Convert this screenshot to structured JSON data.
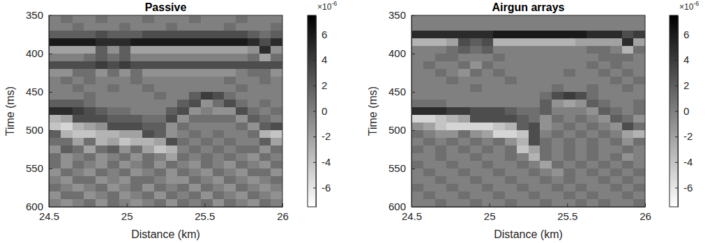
{
  "chart_data": [
    {
      "type": "heatmap",
      "title": "Passive",
      "xlabel": "Distance (km)",
      "ylabel": "Time (ms)",
      "xlim": [
        24.5,
        26
      ],
      "ylim": [
        350,
        600
      ],
      "xticks": [
        24.5,
        25,
        25.5,
        26
      ],
      "yticks": [
        350,
        400,
        450,
        500,
        550,
        600
      ],
      "x": [
        24.5375,
        24.6125,
        24.6875,
        24.7625,
        24.8375,
        24.9125,
        24.9875,
        25.0625,
        25.1375,
        25.2125,
        25.2875,
        25.3625,
        25.4375,
        25.5125,
        25.5875,
        25.6625,
        25.7375,
        25.8125,
        25.8875,
        25.9625
      ],
      "y": [
        355,
        365,
        375,
        385,
        395,
        405,
        415,
        425,
        435,
        445,
        455,
        465,
        475,
        485,
        495,
        505,
        515,
        525,
        535,
        545,
        555,
        565,
        575,
        585,
        595
      ],
      "values": [
        [
          0,
          1,
          0,
          0,
          1,
          0,
          0,
          0,
          1,
          0,
          0,
          0,
          1,
          0,
          0,
          0,
          1,
          0,
          0,
          0
        ],
        [
          0,
          0,
          1,
          0,
          0,
          0,
          1,
          0,
          0,
          0,
          1,
          0,
          0,
          0,
          0,
          1,
          0,
          0,
          0,
          1
        ],
        [
          2,
          2,
          2,
          2,
          3,
          2,
          2,
          2,
          3,
          3,
          3,
          3,
          3,
          3,
          3,
          3,
          3,
          2,
          1,
          2
        ],
        [
          6,
          6,
          6,
          6,
          5,
          5,
          5,
          6,
          6,
          6,
          6,
          6,
          6,
          6,
          6,
          6,
          6,
          5,
          3,
          5
        ],
        [
          -2,
          -2,
          -2,
          -2,
          2,
          -1,
          2,
          -2,
          -2,
          -2,
          -2,
          -2,
          -2,
          -2,
          -2,
          -2,
          -2,
          -1,
          5,
          -1
        ],
        [
          0,
          0,
          0,
          1,
          2,
          1,
          2,
          0,
          0,
          0,
          0,
          0,
          0,
          0,
          0,
          0,
          0,
          1,
          -2,
          1
        ],
        [
          3,
          3,
          3,
          3,
          4,
          3,
          4,
          3,
          3,
          3,
          3,
          3,
          3,
          3,
          3,
          3,
          3,
          3,
          3,
          3
        ],
        [
          -1,
          -1,
          1,
          1,
          -1,
          1,
          -1,
          1,
          -1,
          -1,
          -1,
          -1,
          -1,
          -1,
          -1,
          -1,
          0,
          1,
          1,
          -1
        ],
        [
          0,
          1,
          0,
          1,
          0,
          0,
          0,
          1,
          0,
          0,
          0,
          0,
          0,
          0,
          0,
          1,
          0,
          0,
          1,
          0
        ],
        [
          0,
          0,
          1,
          0,
          0,
          1,
          0,
          0,
          1,
          0,
          0,
          0,
          0,
          0,
          0,
          0,
          1,
          0,
          0,
          0
        ],
        [
          0,
          0,
          0,
          1,
          0,
          0,
          0,
          0,
          0,
          1,
          0,
          0,
          2,
          4,
          3,
          1,
          0,
          0,
          0,
          0
        ],
        [
          2,
          2,
          2,
          1,
          0,
          0,
          0,
          0,
          0,
          0,
          0,
          2,
          3,
          -1,
          1,
          3,
          1,
          0,
          1,
          0
        ],
        [
          5,
          5,
          4,
          3,
          2,
          1,
          1,
          0,
          0,
          0,
          2,
          3,
          -1,
          0,
          -1,
          -1,
          3,
          1,
          0,
          1
        ],
        [
          -3,
          -2,
          3,
          3,
          3,
          2,
          2,
          2,
          1,
          1,
          3,
          -1,
          1,
          1,
          1,
          1,
          -1,
          2,
          1,
          0
        ],
        [
          -4,
          -5,
          -3,
          -2,
          -1,
          3,
          3,
          3,
          2,
          2,
          -1,
          1,
          0,
          0,
          0,
          0,
          1,
          -1,
          2,
          3
        ],
        [
          2,
          -3,
          -4,
          -4,
          -3,
          -3,
          -2,
          -2,
          3,
          2,
          -1,
          0,
          1,
          0,
          1,
          0,
          0,
          1,
          -3,
          -4
        ],
        [
          1,
          1,
          -2,
          1,
          -3,
          -2,
          -4,
          -3,
          -3,
          -2,
          3,
          1,
          0,
          1,
          0,
          1,
          0,
          0,
          2,
          -2
        ],
        [
          -1,
          2,
          1,
          -2,
          1,
          2,
          -1,
          1,
          -2,
          -4,
          -3,
          0,
          1,
          0,
          1,
          0,
          1,
          1,
          -1,
          1
        ],
        [
          1,
          -1,
          0,
          1,
          -1,
          0,
          1,
          -1,
          1,
          0,
          -2,
          1,
          0,
          1,
          0,
          1,
          0,
          -1,
          1,
          0
        ],
        [
          1,
          -1,
          1,
          0,
          -1,
          1,
          -1,
          0,
          1,
          -1,
          1,
          0,
          -1,
          1,
          0,
          -1,
          1,
          0,
          -1,
          1
        ],
        [
          -1,
          1,
          0,
          -1,
          1,
          0,
          1,
          -1,
          0,
          1,
          -1,
          1,
          0,
          -1,
          1,
          0,
          -1,
          1,
          1,
          -1
        ],
        [
          0,
          -1,
          1,
          1,
          -1,
          0,
          -1,
          1,
          1,
          0,
          -1,
          -1,
          1,
          0,
          -1,
          1,
          0,
          -1,
          0,
          1
        ],
        [
          1,
          0,
          -1,
          0,
          1,
          -1,
          0,
          1,
          -1,
          1,
          0,
          1,
          -1,
          1,
          0,
          -1,
          1,
          0,
          -1,
          0
        ],
        [
          -1,
          1,
          1,
          -1,
          0,
          1,
          -1,
          0,
          1,
          -1,
          1,
          0,
          1,
          -1,
          1,
          0,
          -1,
          1,
          0,
          -1
        ],
        [
          0,
          -1,
          0,
          1,
          -1,
          1,
          0,
          -1,
          0,
          1,
          -1,
          1,
          0,
          1,
          -1,
          1,
          0,
          -1,
          1,
          0
        ]
      ],
      "colorbar": {
        "range": [
          -7.5,
          7.5
        ],
        "ticks": [
          -6,
          -4,
          -2,
          0,
          2,
          4,
          6
        ],
        "scale_label": "×10",
        "scale_exponent": "-6"
      }
    },
    {
      "type": "heatmap",
      "title": "Airgun arrays",
      "xlabel": "Distance (km)",
      "ylabel": "Time (ms)",
      "xlim": [
        24.5,
        26
      ],
      "ylim": [
        350,
        600
      ],
      "xticks": [
        24.5,
        25,
        25.5,
        26
      ],
      "yticks": [
        350,
        400,
        450,
        500,
        550,
        600
      ],
      "x": [
        24.5375,
        24.6125,
        24.6875,
        24.7625,
        24.8375,
        24.9125,
        24.9875,
        25.0625,
        25.1375,
        25.2125,
        25.2875,
        25.3625,
        25.4375,
        25.5125,
        25.5875,
        25.6625,
        25.7375,
        25.8125,
        25.8875,
        25.9625
      ],
      "y": [
        355,
        365,
        375,
        385,
        395,
        405,
        415,
        425,
        435,
        445,
        455,
        465,
        475,
        485,
        495,
        505,
        515,
        525,
        535,
        545,
        555,
        565,
        575,
        585,
        595
      ],
      "values": [
        [
          0,
          0,
          0,
          0,
          0,
          0,
          0,
          0,
          0,
          0,
          0,
          0,
          0,
          0,
          0,
          0,
          0,
          0,
          0,
          0
        ],
        [
          0,
          0,
          0,
          0,
          0,
          0,
          0,
          0,
          0,
          0,
          0,
          0,
          0,
          0,
          0,
          0,
          0,
          0,
          0,
          0
        ],
        [
          5,
          5,
          5,
          5,
          5,
          5,
          5,
          6,
          6,
          6,
          6,
          6,
          6,
          6,
          6,
          5,
          5,
          5,
          3,
          4
        ],
        [
          -3,
          -3,
          -3,
          -2,
          3,
          2,
          3,
          -3,
          -3,
          -3,
          -3,
          -3,
          -3,
          -3,
          -2,
          -2,
          -2,
          -2,
          5,
          -2
        ],
        [
          0,
          0,
          0,
          1,
          2,
          1,
          2,
          0,
          0,
          0,
          0,
          0,
          0,
          0,
          0,
          1,
          1,
          0,
          -3,
          1
        ],
        [
          0,
          0,
          1,
          1,
          0,
          0,
          0,
          1,
          0,
          0,
          0,
          0,
          0,
          0,
          0,
          0,
          1,
          1,
          1,
          0
        ],
        [
          0,
          1,
          0,
          0,
          1,
          -1,
          1,
          0,
          0,
          0,
          0,
          0,
          0,
          0,
          0,
          1,
          0,
          1,
          0,
          0
        ],
        [
          0,
          0,
          1,
          0,
          -1,
          1,
          0,
          1,
          0,
          0,
          0,
          0,
          0,
          1,
          0,
          0,
          1,
          0,
          1,
          0
        ],
        [
          0,
          0,
          0,
          1,
          0,
          0,
          0,
          0,
          1,
          0,
          0,
          0,
          0,
          0,
          0,
          0,
          0,
          1,
          0,
          1
        ],
        [
          0,
          0,
          0,
          0,
          0,
          1,
          0,
          0,
          0,
          0,
          0,
          0,
          1,
          0,
          0,
          1,
          0,
          0,
          1,
          0
        ],
        [
          0,
          0,
          0,
          0,
          0,
          0,
          0,
          0,
          0,
          0,
          0,
          1,
          3,
          4,
          3,
          1,
          0,
          0,
          0,
          0
        ],
        [
          1,
          1,
          1,
          0,
          0,
          0,
          0,
          0,
          0,
          0,
          0,
          2,
          -1,
          -2,
          -1,
          2,
          1,
          0,
          0,
          1
        ],
        [
          5,
          5,
          5,
          4,
          4,
          3,
          3,
          3,
          2,
          1,
          1,
          2,
          0,
          0,
          0,
          -1,
          2,
          1,
          0,
          1
        ],
        [
          -5,
          -5,
          -4,
          -3,
          -2,
          3,
          3,
          3,
          3,
          2,
          1,
          -1,
          1,
          0,
          1,
          0,
          -1,
          2,
          1,
          -1
        ],
        [
          -1,
          -2,
          -4,
          -5,
          -5,
          -5,
          -5,
          -4,
          -3,
          2,
          3,
          -1,
          0,
          1,
          0,
          1,
          0,
          -1,
          3,
          1
        ],
        [
          1,
          0,
          -1,
          -1,
          1,
          -1,
          -2,
          -5,
          -5,
          -4,
          3,
          0,
          1,
          0,
          1,
          0,
          1,
          0,
          -2,
          -3
        ],
        [
          0,
          1,
          0,
          1,
          0,
          1,
          0,
          1,
          -1,
          -3,
          3,
          1,
          0,
          1,
          0,
          1,
          0,
          1,
          -1,
          1
        ],
        [
          1,
          0,
          1,
          0,
          1,
          0,
          1,
          0,
          1,
          -4,
          -2,
          1,
          0,
          1,
          0,
          1,
          0,
          0,
          1,
          0
        ],
        [
          0,
          0,
          1,
          0,
          0,
          1,
          0,
          0,
          1,
          0,
          -3,
          1,
          0,
          1,
          0,
          1,
          0,
          1,
          -1,
          0
        ],
        [
          1,
          0,
          0,
          1,
          0,
          0,
          1,
          0,
          0,
          1,
          0,
          -2,
          1,
          0,
          1,
          0,
          1,
          0,
          1,
          0
        ],
        [
          0,
          1,
          0,
          0,
          1,
          0,
          0,
          1,
          0,
          0,
          1,
          0,
          -1,
          1,
          0,
          1,
          0,
          1,
          0,
          1
        ],
        [
          0,
          0,
          1,
          0,
          0,
          1,
          0,
          0,
          1,
          0,
          0,
          1,
          0,
          1,
          0,
          0,
          1,
          0,
          1,
          0
        ],
        [
          1,
          0,
          0,
          1,
          0,
          0,
          1,
          0,
          0,
          1,
          0,
          0,
          1,
          0,
          1,
          0,
          0,
          1,
          0,
          1
        ],
        [
          0,
          1,
          0,
          0,
          1,
          0,
          0,
          1,
          0,
          0,
          1,
          0,
          0,
          1,
          0,
          1,
          0,
          0,
          1,
          0
        ],
        [
          0,
          0,
          1,
          0,
          0,
          1,
          0,
          0,
          1,
          0,
          0,
          1,
          0,
          0,
          1,
          0,
          1,
          0,
          0,
          1
        ]
      ],
      "colorbar": {
        "range": [
          -7.5,
          7.5
        ],
        "ticks": [
          -6,
          -4,
          -2,
          0,
          2,
          4,
          6
        ],
        "scale_label": "×10",
        "scale_exponent": "-6"
      }
    }
  ]
}
